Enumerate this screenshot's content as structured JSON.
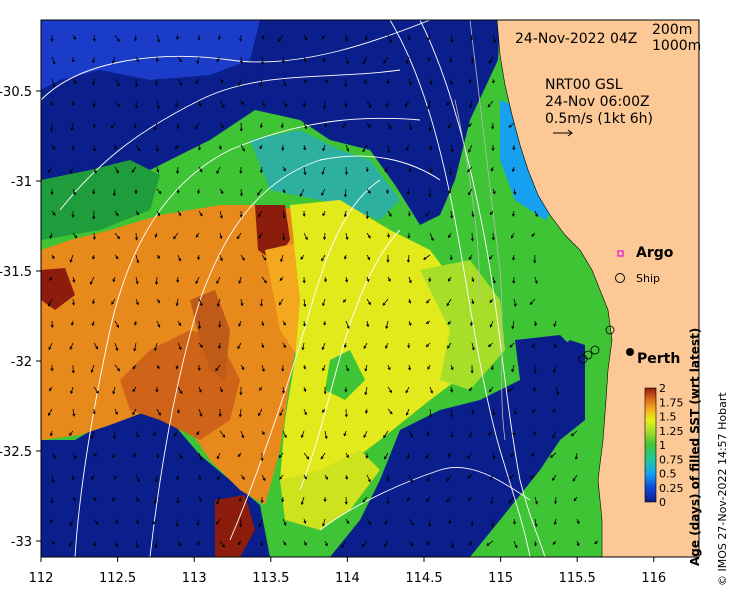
{
  "map": {
    "date_label": "24-Nov-2022 04Z",
    "isobath_labels": [
      "200m",
      "1000m"
    ],
    "current_product": "NRT00 GSL",
    "current_time": "24-Nov 06:00Z",
    "current_scale": "0.5m/s (1kt 6h)",
    "legend_argo": "Argo",
    "legend_ship": "Ship",
    "city_label": "Perth",
    "colorbar_title": "Age (days) of filled SST (wrt latest)",
    "colorbar_ticks": [
      "2",
      "1.75",
      "1.5",
      "1.25",
      "1",
      "0.75",
      "0.5",
      "0.25",
      "0"
    ],
    "credit": "© IMOS 27-Nov-2022 14:57 Hobart",
    "x_ticks": [
      "112",
      "112.5",
      "113",
      "113.5",
      "114",
      "114.5",
      "115",
      "115.5",
      "116"
    ],
    "y_ticks": [
      "-30.5",
      "-31",
      "-31.5",
      "-32",
      "-32.5",
      "-33"
    ],
    "colors": {
      "land": "#fbc896",
      "age_0": "#0b1f8c",
      "age_1": "#3fc436",
      "age_1_5": "#d6e81c",
      "age_2": "#8c1c0c"
    }
  }
}
